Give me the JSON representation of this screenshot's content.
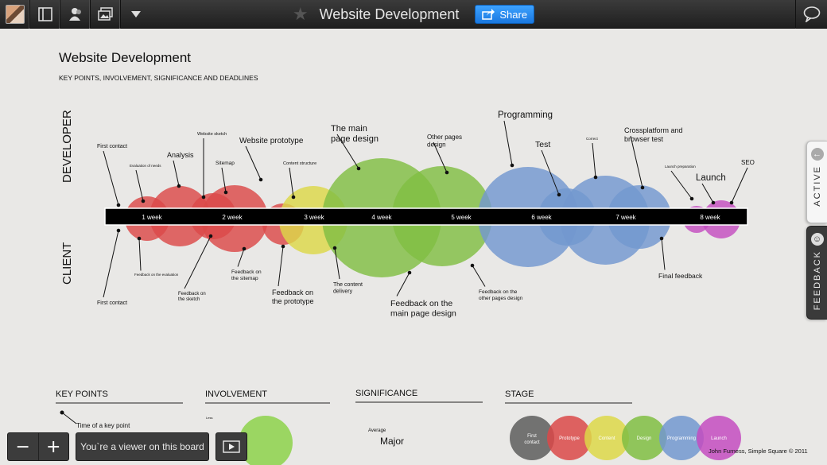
{
  "topbar": {
    "title": "Website Development",
    "share_label": "Share"
  },
  "side_tabs": {
    "active_label": "ACTIVE",
    "feedback_label": "FEEDBACK"
  },
  "bottom_bar": {
    "zoom_out": "−",
    "zoom_in": "+",
    "viewer_status": "You`re a viewer on this board"
  },
  "infographic": {
    "title": "Website Development",
    "subtitle": "KEY POINTS, INVOLVEMENT, SIGNIFICANCE AND DEADLINES",
    "developer_label": "DEVELOPER",
    "client_label": "CLIENT",
    "weeks": [
      "1 week",
      "2 week",
      "3 week",
      "4 week",
      "5 week",
      "6 week",
      "7 week",
      "8 week"
    ],
    "colors": {
      "first_contact": "#666666",
      "prototype": "#f05050",
      "content": "#f2ee50",
      "design": "#8dd24a",
      "programming": "#7ea7e6",
      "launch": "#d755d6"
    },
    "developer_points": [
      "First contact",
      "Evaluation of needs",
      "Analysis",
      "Website sketch",
      "Sitemap",
      "Website prototype",
      "Content structure",
      "The main page design",
      "Other pages design",
      "Programming",
      "Test",
      "Correct",
      "Crossplatform and browser test",
      "Launch",
      "Launch preparation",
      "SEO"
    ],
    "client_points": [
      "First contact",
      "Feedback on the evaluation",
      "Feedback on the sketch",
      "Feedback on the sitemap",
      "Feedback on the prototype",
      "The content delivery",
      "Feedback on the main page design",
      "Feedback on the other pages design",
      "Final feedback"
    ],
    "legend": {
      "key_points_heading": "KEY POINTS",
      "key_points_example": "Time of a key point",
      "involvement_heading": "INVOLVEMENT",
      "involvement_example": "Less",
      "significance_heading": "SIGNIFICANCE",
      "significance_small": "Average",
      "significance_large": "Major",
      "stage_heading": "STAGE",
      "stages": [
        "First contact",
        "Prototype",
        "Content",
        "Design",
        "Programming",
        "Launch"
      ],
      "credit": "John Furness, Simple Square © 2011"
    }
  }
}
